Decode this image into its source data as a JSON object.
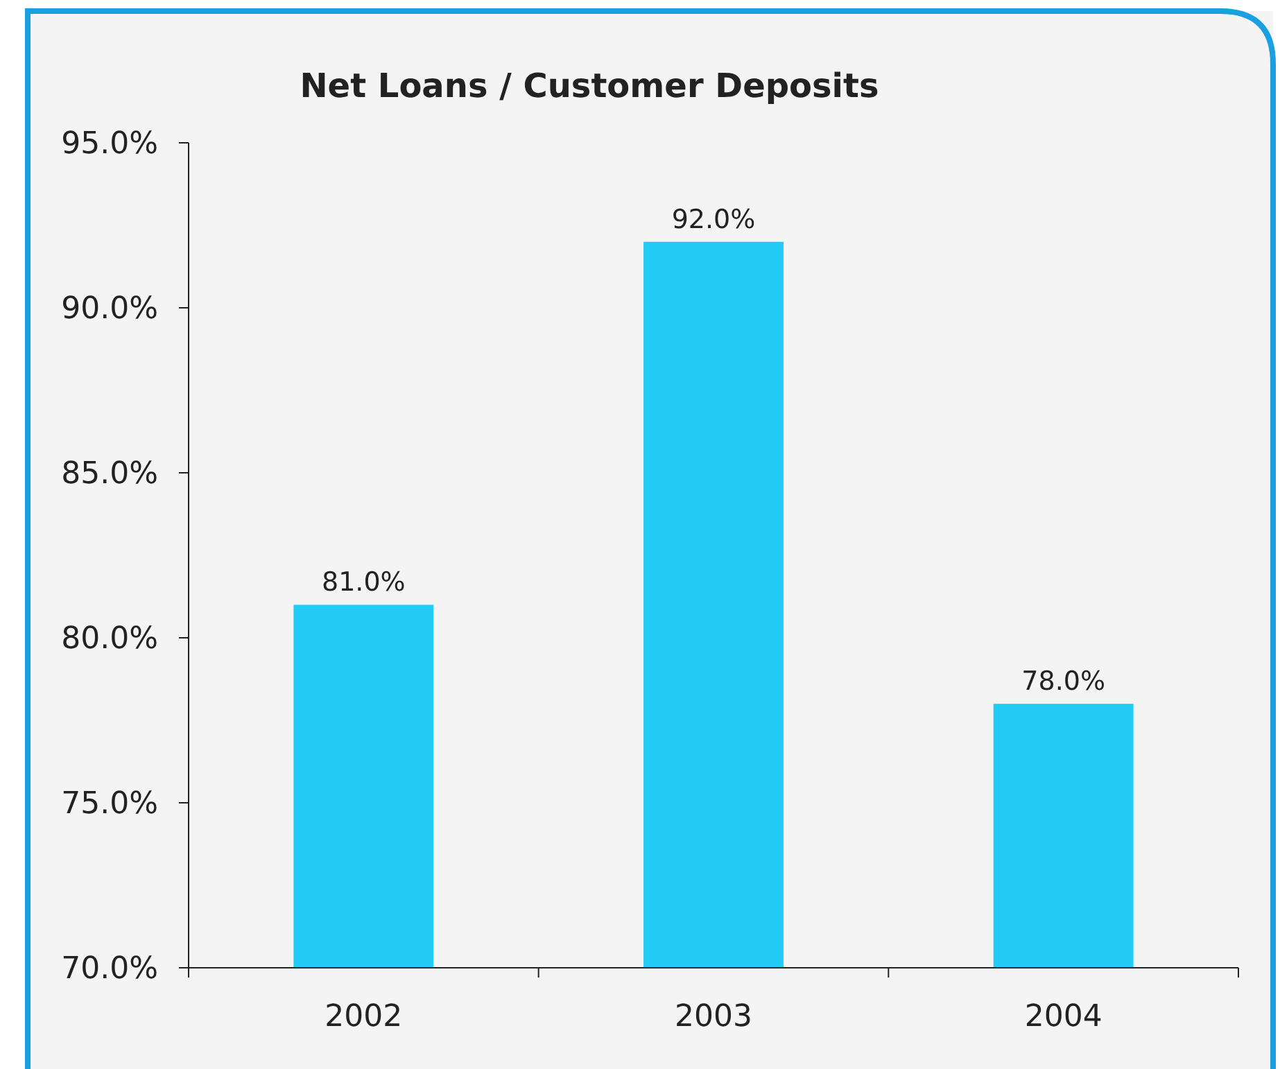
{
  "chart_data": {
    "type": "bar",
    "title": "Net Loans / Customer Deposits",
    "categories": [
      "2002",
      "2003",
      "2004"
    ],
    "values": [
      81.0,
      92.0,
      78.0
    ],
    "value_labels": [
      "81.0%",
      "92.0%",
      "78.0%"
    ],
    "color": "#22ccf5",
    "ylim": [
      70,
      95
    ],
    "yticks": [
      {
        "value": 70,
        "label": "70.0%"
      },
      {
        "value": 75,
        "label": "75.0%"
      },
      {
        "value": 80,
        "label": "80.0%"
      },
      {
        "value": 85,
        "label": "85.0%"
      },
      {
        "value": 90,
        "label": "90.0%"
      },
      {
        "value": 95,
        "label": "95.0%"
      }
    ],
    "grid": false
  }
}
